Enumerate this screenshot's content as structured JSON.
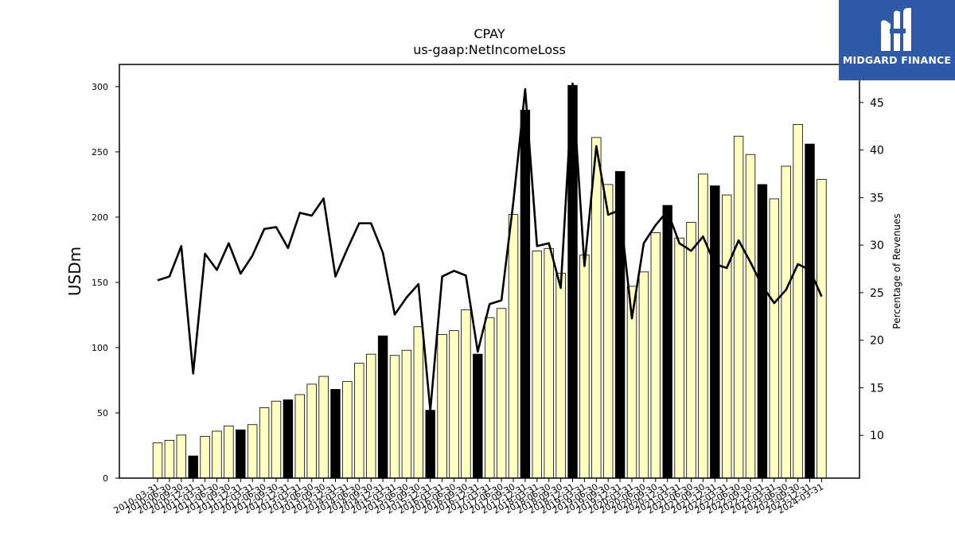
{
  "chart_data": {
    "type": "bar",
    "title": "CPAY",
    "subtitle": "us-gaap:NetIncomeLoss",
    "ylabel": "USDm",
    "y2label": "Percentage of Revenues",
    "ylim": [
      0,
      317
    ],
    "y2lim": [
      5.5,
      49.0
    ],
    "yticks": [
      0,
      50,
      100,
      150,
      200,
      250,
      300
    ],
    "y2ticks": [
      10,
      15,
      20,
      25,
      30,
      35,
      40,
      45
    ],
    "categories": [
      "2010-03-31",
      "2010-06-30",
      "2010-09-30",
      "2010-12-31",
      "2011-03-31",
      "2011-06-30",
      "2011-09-30",
      "2011-12-31",
      "2012-03-31",
      "2012-06-30",
      "2012-09-30",
      "2012-12-31",
      "2013-03-31",
      "2013-06-30",
      "2013-09-30",
      "2013-12-31",
      "2014-03-31",
      "2014-06-30",
      "2014-09-30",
      "2014-12-31",
      "2015-03-31",
      "2015-06-30",
      "2015-09-30",
      "2015-12-31",
      "2016-03-31",
      "2016-06-30",
      "2016-09-30",
      "2016-12-31",
      "2017-03-31",
      "2017-06-30",
      "2017-09-30",
      "2017-12-31",
      "2018-03-31",
      "2018-06-30",
      "2018-09-30",
      "2018-12-31",
      "2019-03-31",
      "2019-06-30",
      "2019-09-30",
      "2019-12-31",
      "2020-03-31",
      "2020-06-30",
      "2020-09-30",
      "2020-12-31",
      "2021-03-31",
      "2021-06-30",
      "2021-09-30",
      "2021-12-31",
      "2022-03-31",
      "2022-06-30",
      "2022-09-30",
      "2022-12-31",
      "2023-03-31",
      "2023-06-30",
      "2023-09-30",
      "2023-12-31",
      "2024-03-31"
    ],
    "series": [
      {
        "kind": "bar",
        "axis": "left",
        "values": [
          27,
          29,
          33,
          17,
          32,
          36,
          40,
          37,
          41,
          54,
          59,
          60,
          64,
          72,
          78,
          68,
          74,
          88,
          95,
          109,
          94,
          98,
          116,
          52,
          110,
          113,
          129,
          95,
          123,
          130,
          202,
          282,
          174,
          176,
          157,
          301,
          171,
          261,
          225,
          235,
          147,
          158,
          188,
          209,
          184,
          196,
          233,
          224,
          217,
          262,
          248,
          225,
          214,
          239,
          271,
          256,
          229
        ],
        "colors": [
          "#ffffc0",
          "#ffffc0",
          "#ffffc0",
          "#000000",
          "#ffffc0",
          "#ffffc0",
          "#ffffc0",
          "#000000",
          "#ffffc0",
          "#ffffc0",
          "#ffffc0",
          "#000000",
          "#ffffc0",
          "#ffffc0",
          "#ffffc0",
          "#000000",
          "#ffffc0",
          "#ffffc0",
          "#ffffc0",
          "#000000",
          "#ffffc0",
          "#ffffc0",
          "#ffffc0",
          "#000000",
          "#ffffc0",
          "#ffffc0",
          "#ffffc0",
          "#000000",
          "#ffffc0",
          "#ffffc0",
          "#ffffc0",
          "#000000",
          "#ffffc0",
          "#ffffc0",
          "#ffffc0",
          "#000000",
          "#ffffc0",
          "#ffffc0",
          "#ffffc0",
          "#000000",
          "#ffffc0",
          "#ffffc0",
          "#ffffc0",
          "#000000",
          "#ffffc0",
          "#ffffc0",
          "#ffffc0",
          "#000000",
          "#ffffc0",
          "#ffffc0",
          "#ffffc0",
          "#000000",
          "#ffffc0",
          "#ffffc0",
          "#ffffc0",
          "#000000",
          "#ffffc0"
        ]
      },
      {
        "kind": "line",
        "axis": "right",
        "values": [
          26.3,
          26.7,
          29.9,
          16.5,
          29.1,
          27.4,
          30.2,
          27.0,
          28.9,
          31.7,
          31.9,
          29.7,
          33.4,
          33.1,
          34.9,
          26.7,
          29.6,
          32.3,
          32.3,
          29.2,
          22.7,
          24.5,
          25.9,
          12.6,
          26.7,
          27.3,
          26.8,
          18.8,
          23.8,
          24.2,
          34.5,
          46.4,
          29.9,
          30.2,
          25.5,
          47.0,
          27.8,
          40.4,
          33.2,
          33.7,
          22.3,
          30.2,
          32.1,
          33.6,
          30.2,
          29.4,
          30.9,
          28.0,
          27.6,
          30.5,
          28.2,
          25.7,
          23.9,
          25.3,
          28.0,
          27.4,
          24.6
        ],
        "color": "#000000"
      }
    ]
  },
  "branding": {
    "logo_text": "MIDGARD FINANCE",
    "logo_bg": "#2f5aa8"
  }
}
